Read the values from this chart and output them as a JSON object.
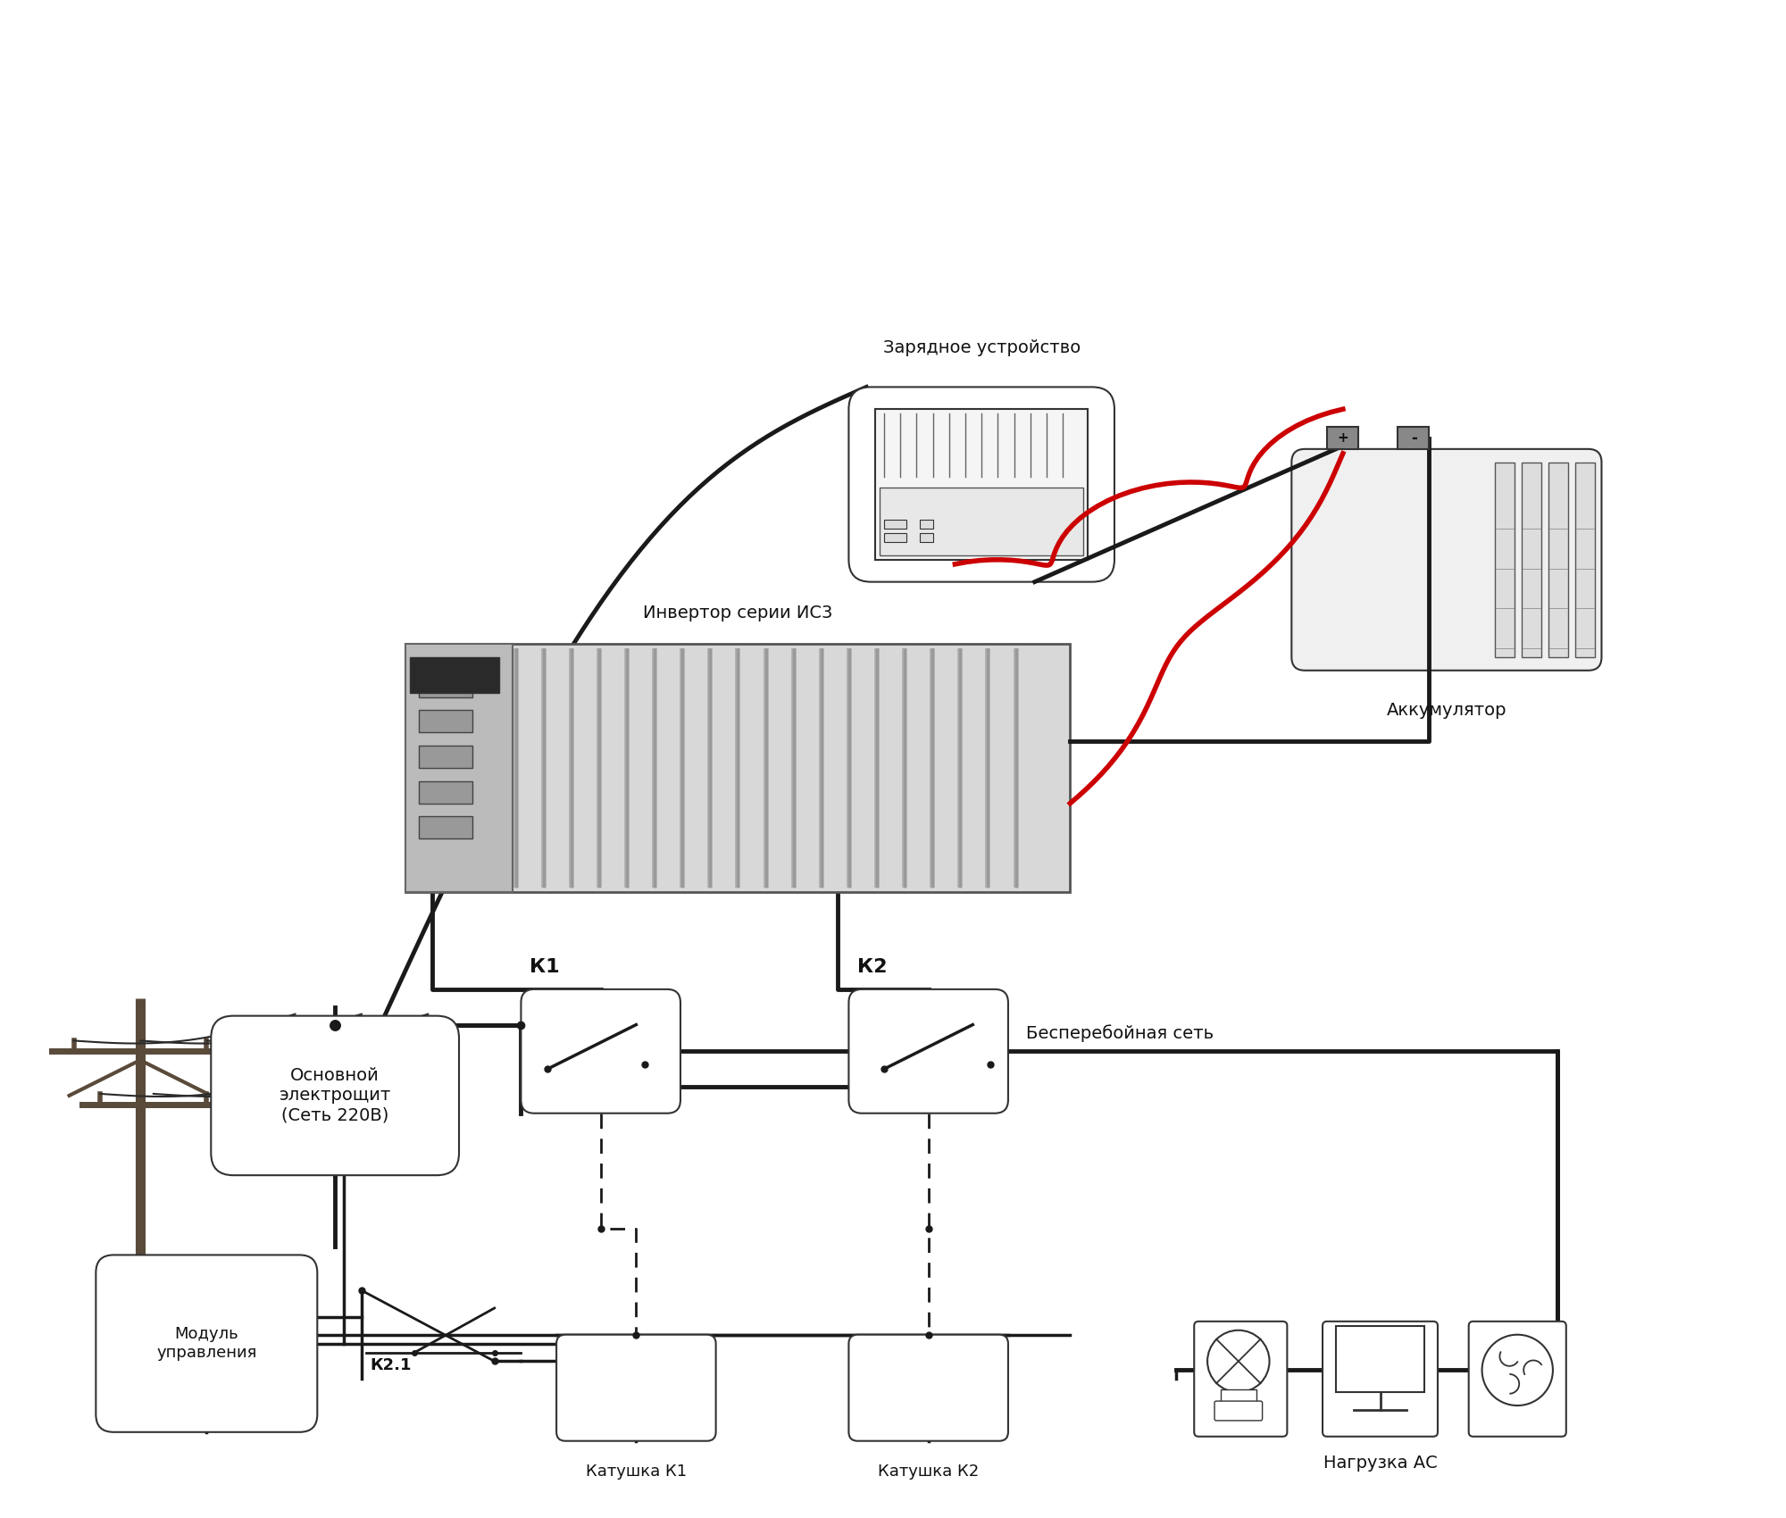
{
  "bg_color": "#ffffff",
  "line_color": "#1a1a1a",
  "red_color": "#cc0000",
  "box_color": "#ffffff",
  "box_edge": "#333333",
  "text_color": "#111111",
  "title": "",
  "labels": {
    "power_pole": "",
    "main_shield": "Основной\nэлектрощит\n(Сеть 220В)",
    "charger": "Зарядное устройство",
    "inverter_label": "Инвертор серии ИС3",
    "battery_label": "Аккумулятор",
    "k1_label": "К1",
    "k2_label": "К2",
    "coil_k1": "Катушка К1",
    "coil_k2": "Катушка К2",
    "control_module": "Модуль\nуправления",
    "k21_label": "К2.1",
    "uninterrupted_net": "Бесперебойная сеть",
    "load_ac": "Нагрузка АС"
  }
}
